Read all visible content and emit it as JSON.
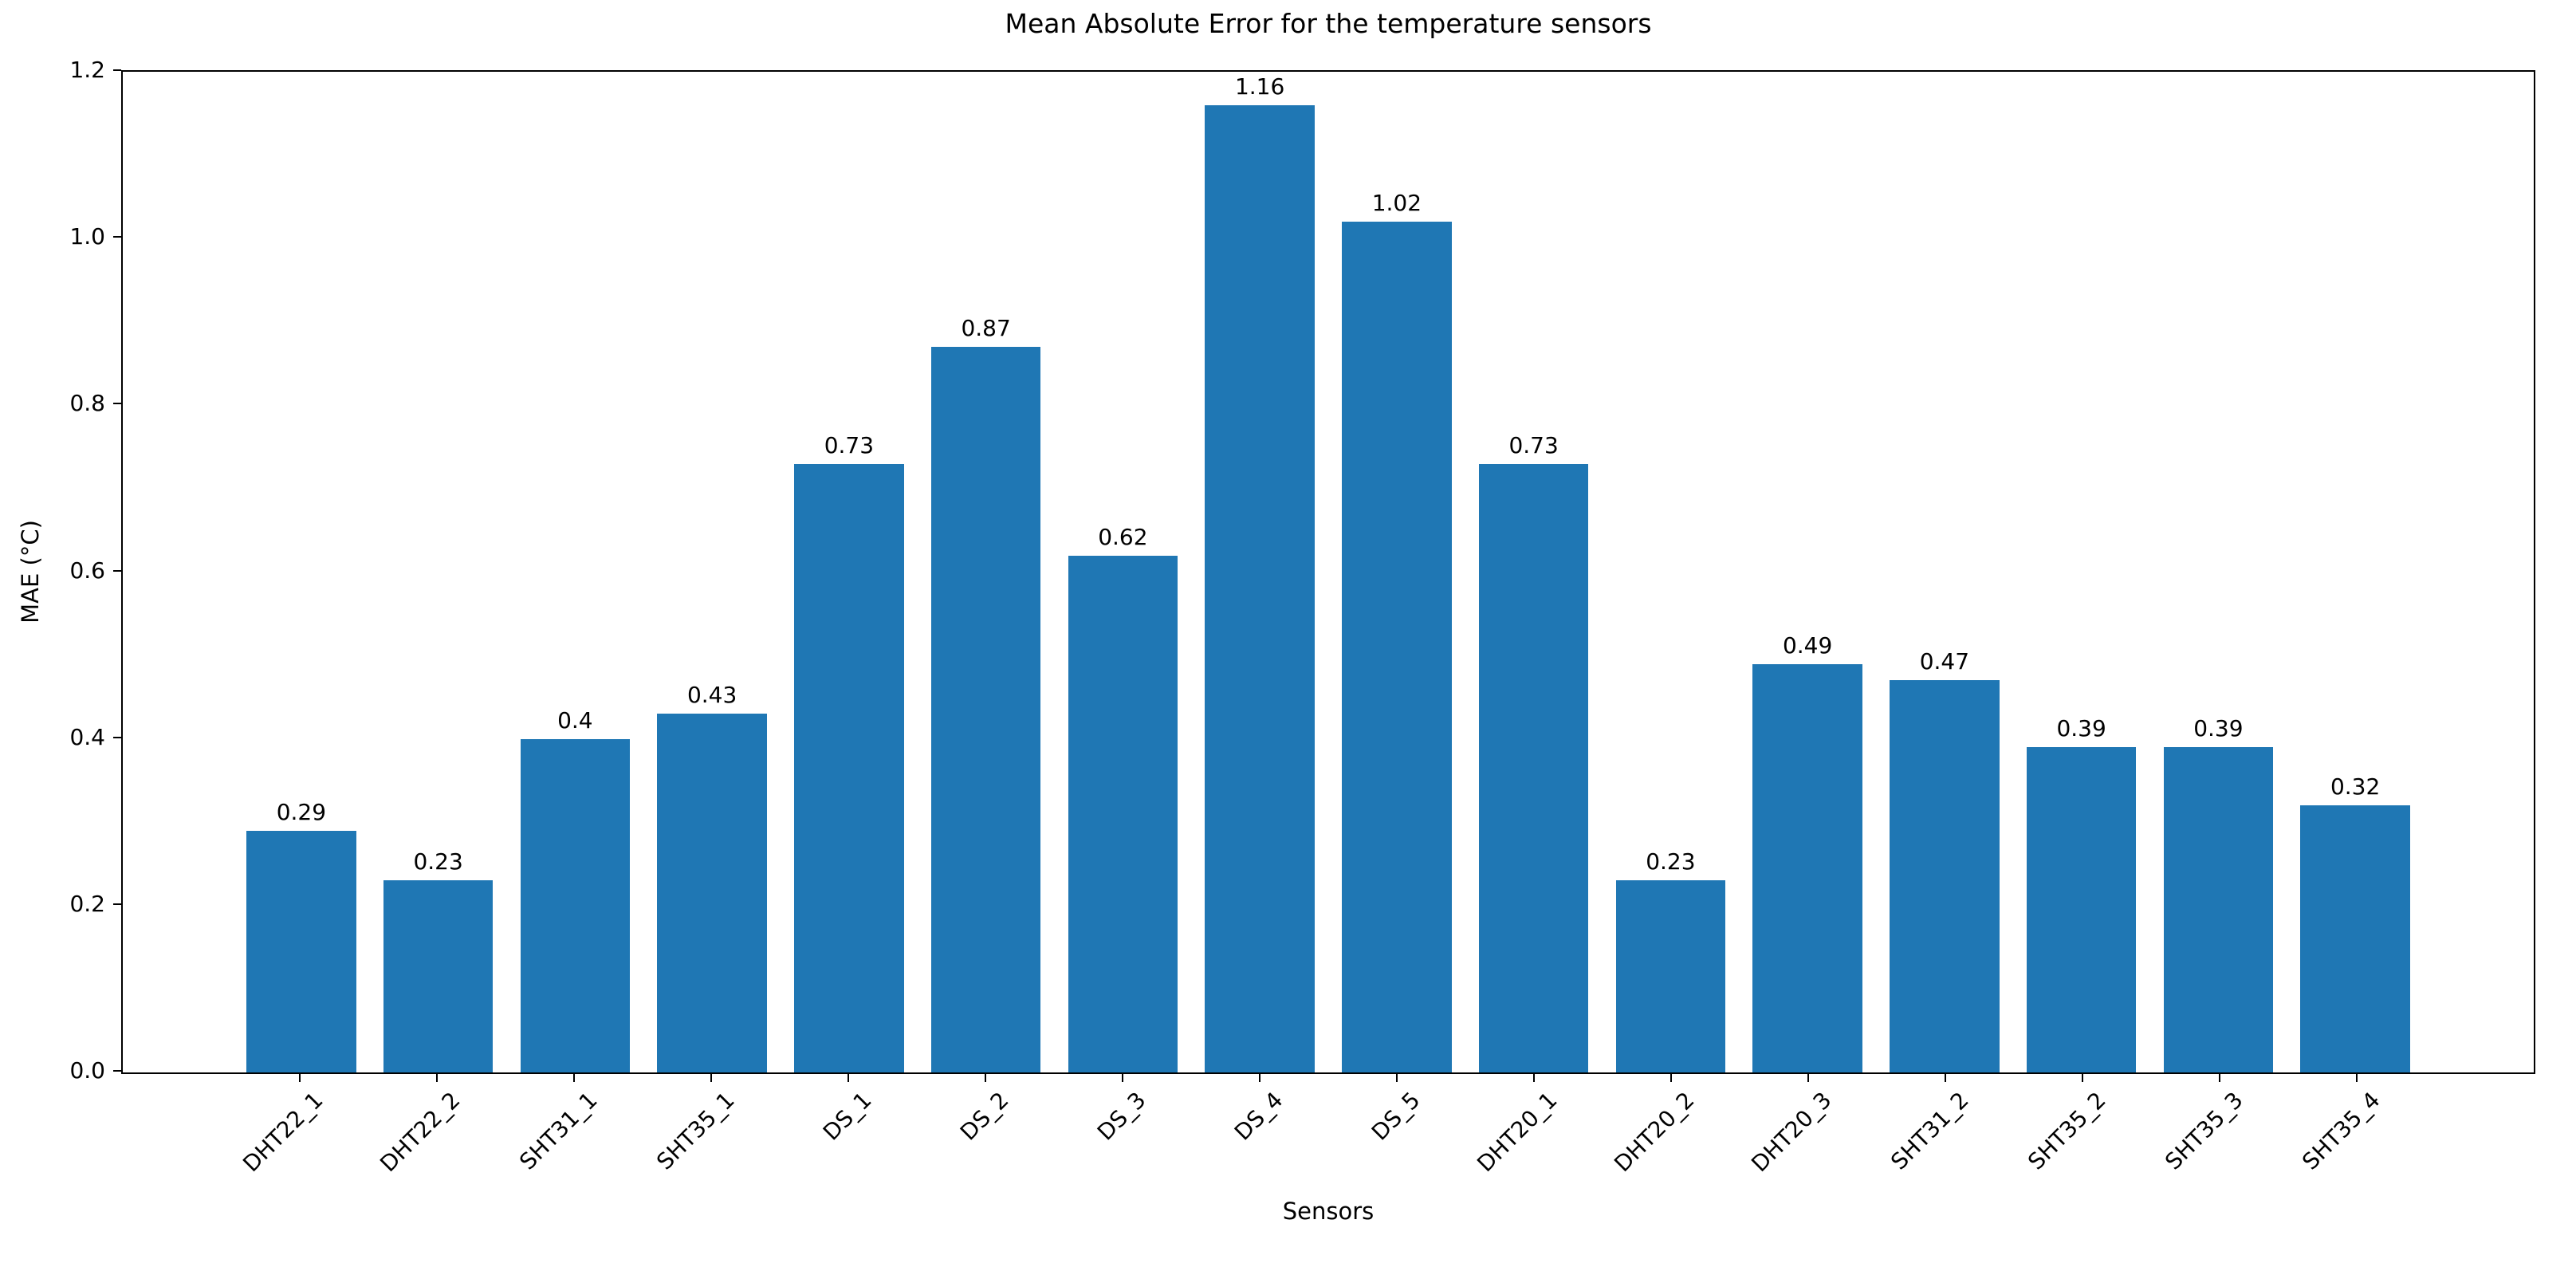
{
  "chart_data": {
    "type": "bar",
    "title": "Mean Absolute Error for the temperature sensors",
    "xlabel": "Sensors",
    "ylabel": "MAE (°C)",
    "categories": [
      "DHT22_1",
      "DHT22_2",
      "SHT31_1",
      "SHT35_1",
      "DS_1",
      "DS_2",
      "DS_3",
      "DS_4",
      "DS_5",
      "DHT20_1",
      "DHT20_2",
      "DHT20_3",
      "SHT31_2",
      "SHT35_2",
      "SHT35_3",
      "SHT35_4"
    ],
    "values": [
      0.29,
      0.23,
      0.4,
      0.43,
      0.73,
      0.87,
      0.62,
      1.16,
      1.02,
      0.73,
      0.23,
      0.49,
      0.47,
      0.39,
      0.39,
      0.32
    ],
    "bar_labels": [
      "0.29",
      "0.23",
      "0.4",
      "0.43",
      "0.73",
      "0.87",
      "0.62",
      "1.16",
      "1.02",
      "0.73",
      "0.23",
      "0.49",
      "0.47",
      "0.39",
      "0.39",
      "0.32"
    ],
    "ylim": [
      0,
      1.2
    ],
    "yticks": [
      "0.0",
      "0.2",
      "0.4",
      "0.6",
      "0.8",
      "1.0",
      "1.2"
    ],
    "bar_color": "#1f77b4",
    "text_color": "#000000",
    "grid": false,
    "legend": "none",
    "x_tick_rotation_deg": 45
  }
}
